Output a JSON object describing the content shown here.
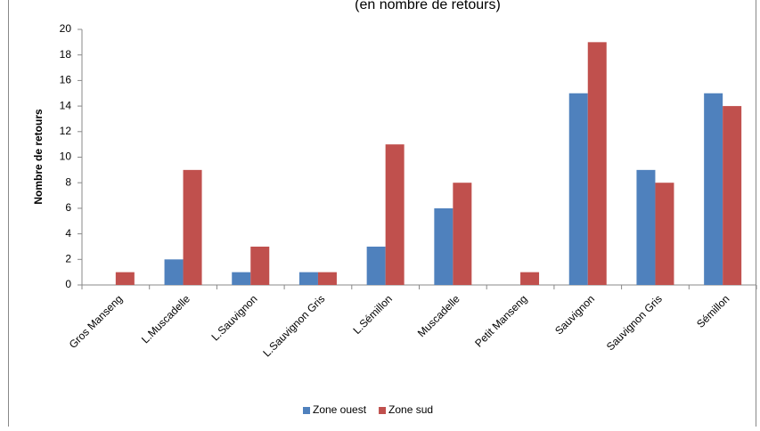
{
  "chart_data": {
    "type": "bar",
    "title": "(en nombre de retours)",
    "y_label": "Nombre de retours",
    "categories": [
      "Gros Manseng",
      "L.Muscadelle",
      "L.Sauvignon",
      "L.Sauvignon Gris",
      "L.Sémillon",
      "Muscadelle",
      "Petit Manseng",
      "Sauvignon",
      "Sauvignon Gris",
      "Sémillon"
    ],
    "series": [
      {
        "name": "Zone ouest",
        "color": "#4f81bd",
        "values": [
          0,
          2,
          1,
          1,
          3,
          6,
          0,
          15,
          9,
          15
        ]
      },
      {
        "name": "Zone sud",
        "color": "#c0504d",
        "values": [
          1,
          9,
          3,
          1,
          11,
          8,
          1,
          19,
          8,
          14
        ]
      }
    ],
    "ylim": [
      0,
      20
    ],
    "yticks": [
      0,
      2,
      4,
      6,
      8,
      10,
      12,
      14,
      16,
      18,
      20
    ],
    "grid": false,
    "legend": "bottom"
  }
}
